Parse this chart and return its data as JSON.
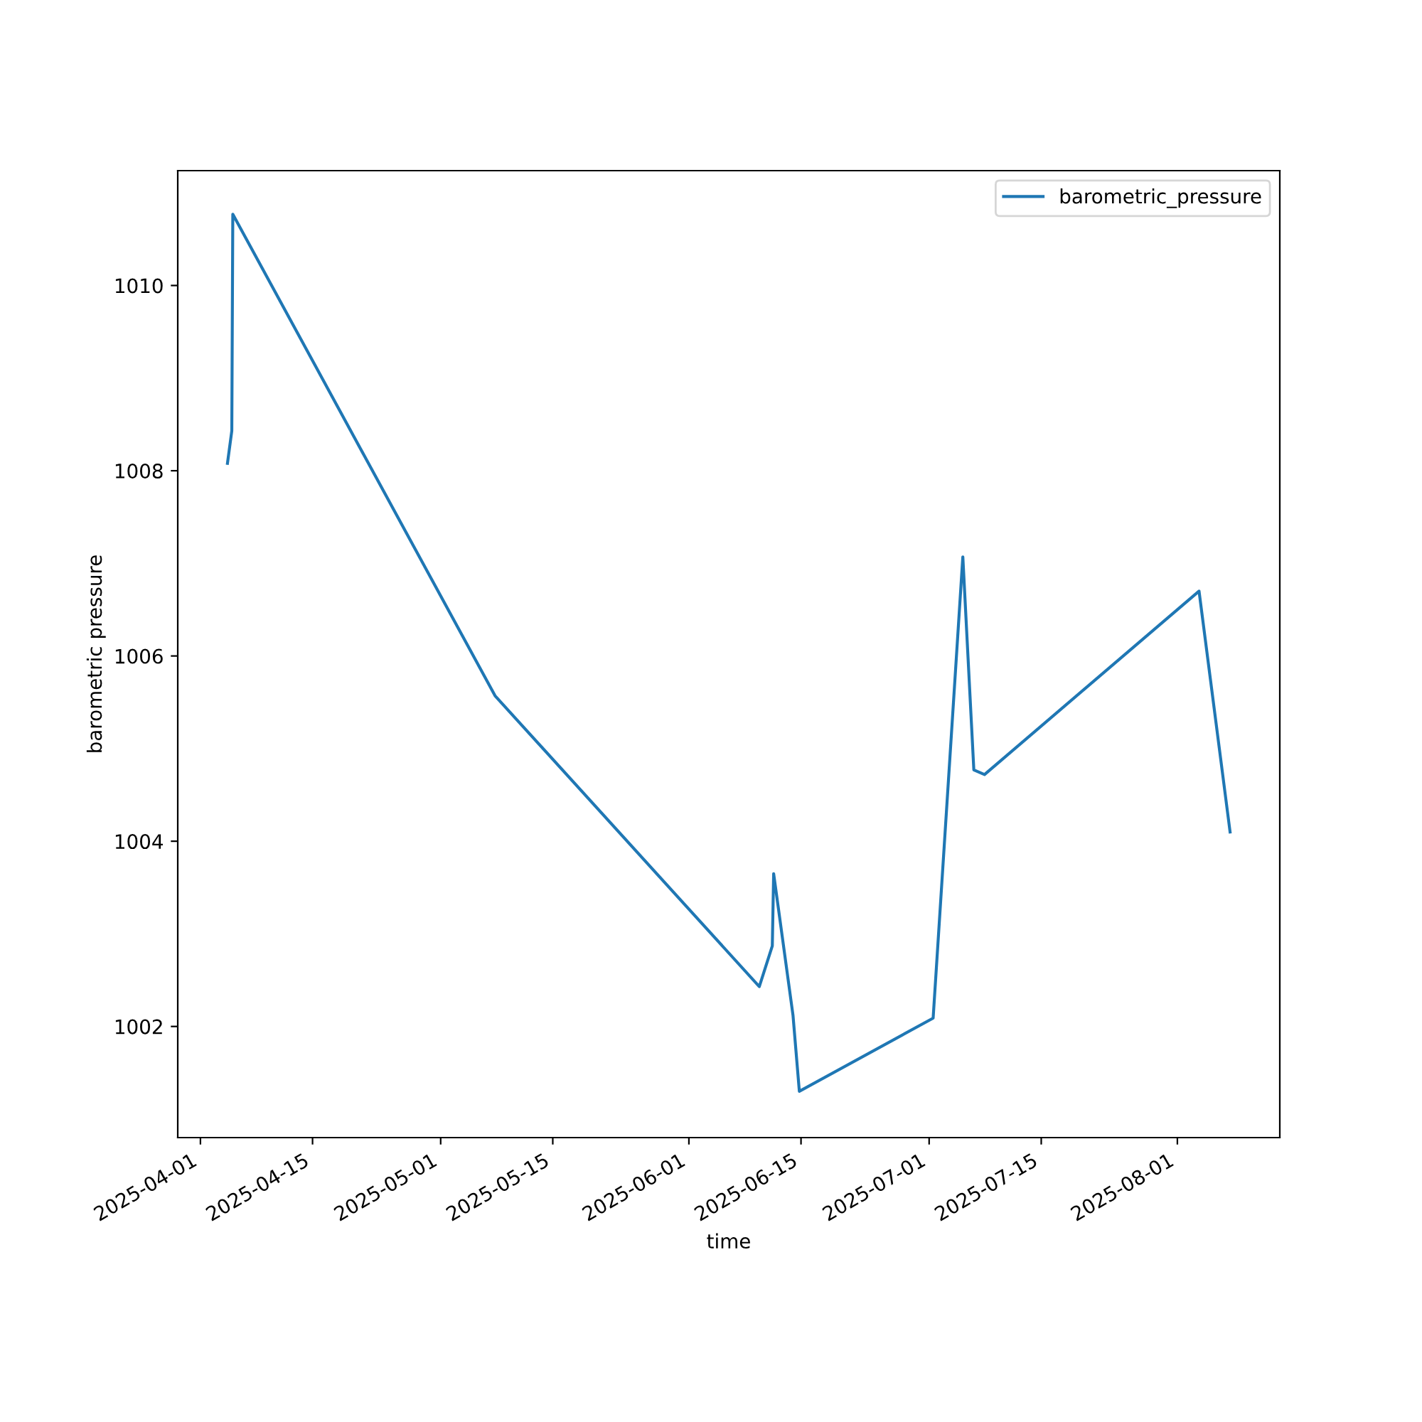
{
  "chart_data": {
    "type": "line",
    "xlabel": "time",
    "ylabel": "barometric pressure",
    "x": [
      "2025-04-04T09:00",
      "2025-04-04T22:00",
      "2025-04-05T01:00",
      "2025-05-07T19:00",
      "2025-06-09T19:00",
      "2025-06-11T10:00",
      "2025-06-11T14:00",
      "2025-06-14T00:00",
      "2025-06-14T19:00",
      "2025-07-01T12:00",
      "2025-07-05T05:00",
      "2025-07-06T14:00",
      "2025-07-07T22:00",
      "2025-08-03T17:00",
      "2025-08-07T14:00"
    ],
    "series": [
      {
        "name": "barometric_pressure",
        "color": "#1f77b4",
        "values": [
          1008.08,
          1008.43,
          1010.77,
          1005.57,
          1002.43,
          1002.87,
          1003.65,
          1002.12,
          1001.3,
          1002.09,
          1007.07,
          1004.77,
          1004.72,
          1006.7,
          1004.1
        ]
      }
    ],
    "xlim": [
      "2025-03-29T04:00",
      "2025-08-13T19:00"
    ],
    "xticks": [
      "2025-04-01",
      "2025-04-15",
      "2025-05-01",
      "2025-05-15",
      "2025-06-01",
      "2025-06-15",
      "2025-07-01",
      "2025-07-15",
      "2025-08-01"
    ],
    "ylim": [
      1000.8,
      1011.24
    ],
    "yticks": [
      1002,
      1004,
      1006,
      1008,
      1010
    ],
    "legend": "top right",
    "grid": false
  }
}
